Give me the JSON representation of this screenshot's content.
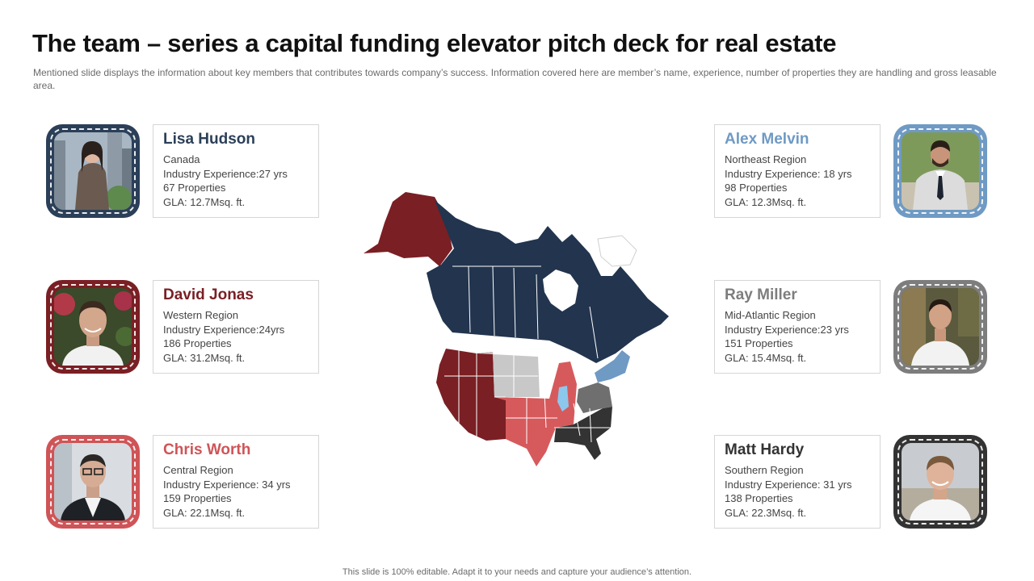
{
  "slide": {
    "title": "The team – series a capital funding elevator pitch deck for real estate",
    "subtitle": "Mentioned slide displays the information about key members that contributes towards company’s success.  Information covered here are member’s name, experience, number of properties they are handling and gross leasable area.",
    "footer": "This slide is 100% editable. Adapt it to your needs and capture your audience’s attention."
  },
  "members": [
    {
      "name": "Lisa Hudson",
      "region": "Canada",
      "experience": "Industry Experience:27 yrs",
      "properties": "67 Properties",
      "gla": "GLA: 12.7Msq. ft.",
      "color": "#2b3f58"
    },
    {
      "name": "David Jonas",
      "region": "Western Region",
      "experience": "Industry Experience:24yrs",
      "properties": "186 Properties",
      "gla": "GLA: 31.2Msq. ft.",
      "color": "#7a1f24"
    },
    {
      "name": "Chris Worth",
      "region": "Central Region",
      "experience": "Industry Experience: 34 yrs",
      "properties": "159 Properties",
      "gla": "GLA: 22.1Msq. ft.",
      "color": "#cf5457"
    },
    {
      "name": "Alex Melvin",
      "region": "Northeast Region",
      "experience": "Industry Experience: 18 yrs",
      "properties": "98 Properties",
      "gla": "GLA: 12.3Msq. ft.",
      "color": "#6f9ac4"
    },
    {
      "name": "Ray Miller",
      "region": "Mid-Atlantic Region",
      "experience": "Industry Experience:23 yrs",
      "properties": "151 Properties",
      "gla": "GLA: 15.4Msq. ft.",
      "color": "#7d7d7d"
    },
    {
      "name": "Matt Hardy",
      "region": "Southern Region",
      "experience": "Industry Experience: 31 yrs",
      "properties": "138 Properties",
      "gla": "GLA: 22.3Msq. ft.",
      "color": "#333333"
    }
  ],
  "map_colors": {
    "canada": "#22344e",
    "west": "#7a1f24",
    "central": "#d65a5c",
    "northeast": "#6f9ac4",
    "midatlantic": "#6f6f6f",
    "south": "#333333",
    "plains": "#c8c8c8",
    "illinois": "#8cc7ee",
    "greenland": "#ffffff"
  }
}
